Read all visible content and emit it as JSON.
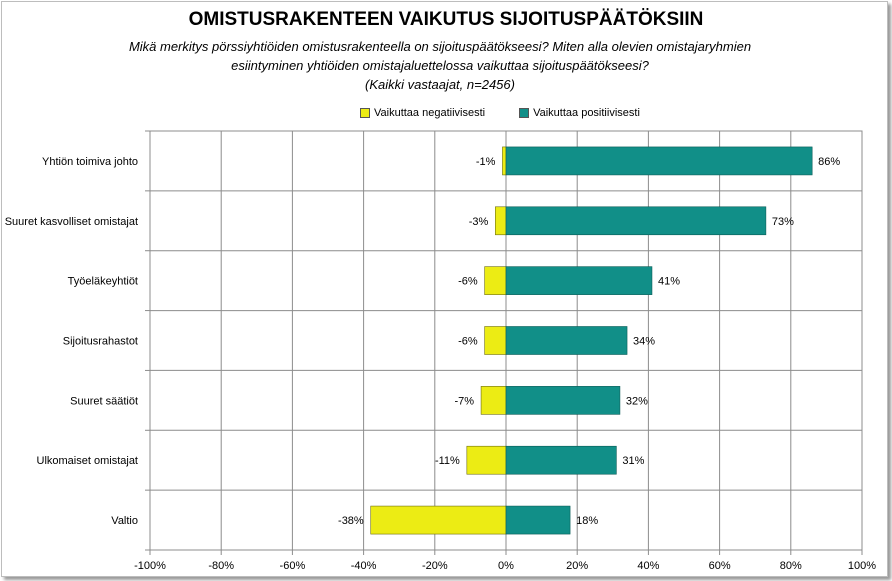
{
  "chart_data": {
    "type": "bar",
    "orientation": "horizontal",
    "title": "OMISTUSRAKENTEEN VAIKUTUS SIJOITUSPÄÄTÖKSIIN",
    "subtitle_lines": [
      "Mikä merkitys pörssiyhtiöiden omistusrakenteella on sijoituspäätökseesi? Miten alla olevien omistajaryhmien",
      "esiintyminen yhtiöiden omistajaluettelossa vaikuttaa sijoituspäätökseesi?",
      "(Kaikki vastaajat, n=2456)"
    ],
    "categories": [
      "Yhtiön toimiva johto",
      "Suuret kasvolliset omistajat",
      "Työeläkeyhtiöt",
      "Sijoitusrahastot",
      "Suuret säätiöt",
      "Ulkomaiset omistajat",
      "Valtio"
    ],
    "series": [
      {
        "name": "Vaikuttaa negatiivisesti",
        "color": "#ecec14",
        "values": [
          -1,
          -3,
          -6,
          -6,
          -7,
          -11,
          -38
        ],
        "labels": [
          "-1%",
          "-3%",
          "-6%",
          "-6%",
          "-7%",
          "-11%",
          "-38%"
        ]
      },
      {
        "name": "Vaikuttaa positiivisesti",
        "color": "#118f88",
        "values": [
          86,
          73,
          41,
          34,
          32,
          31,
          18
        ],
        "labels": [
          "86%",
          "73%",
          "41%",
          "34%",
          "32%",
          "31%",
          "18%"
        ]
      }
    ],
    "xlim": [
      -100,
      100
    ],
    "x_ticks": [
      -100,
      -80,
      -60,
      -40,
      -20,
      0,
      20,
      40,
      60,
      80,
      100
    ],
    "x_tick_labels": [
      "-100%",
      "-80%",
      "-60%",
      "-40%",
      "-20%",
      "0%",
      "20%",
      "40%",
      "60%",
      "80%",
      "100%"
    ],
    "grid": true,
    "legend_position": "top"
  }
}
